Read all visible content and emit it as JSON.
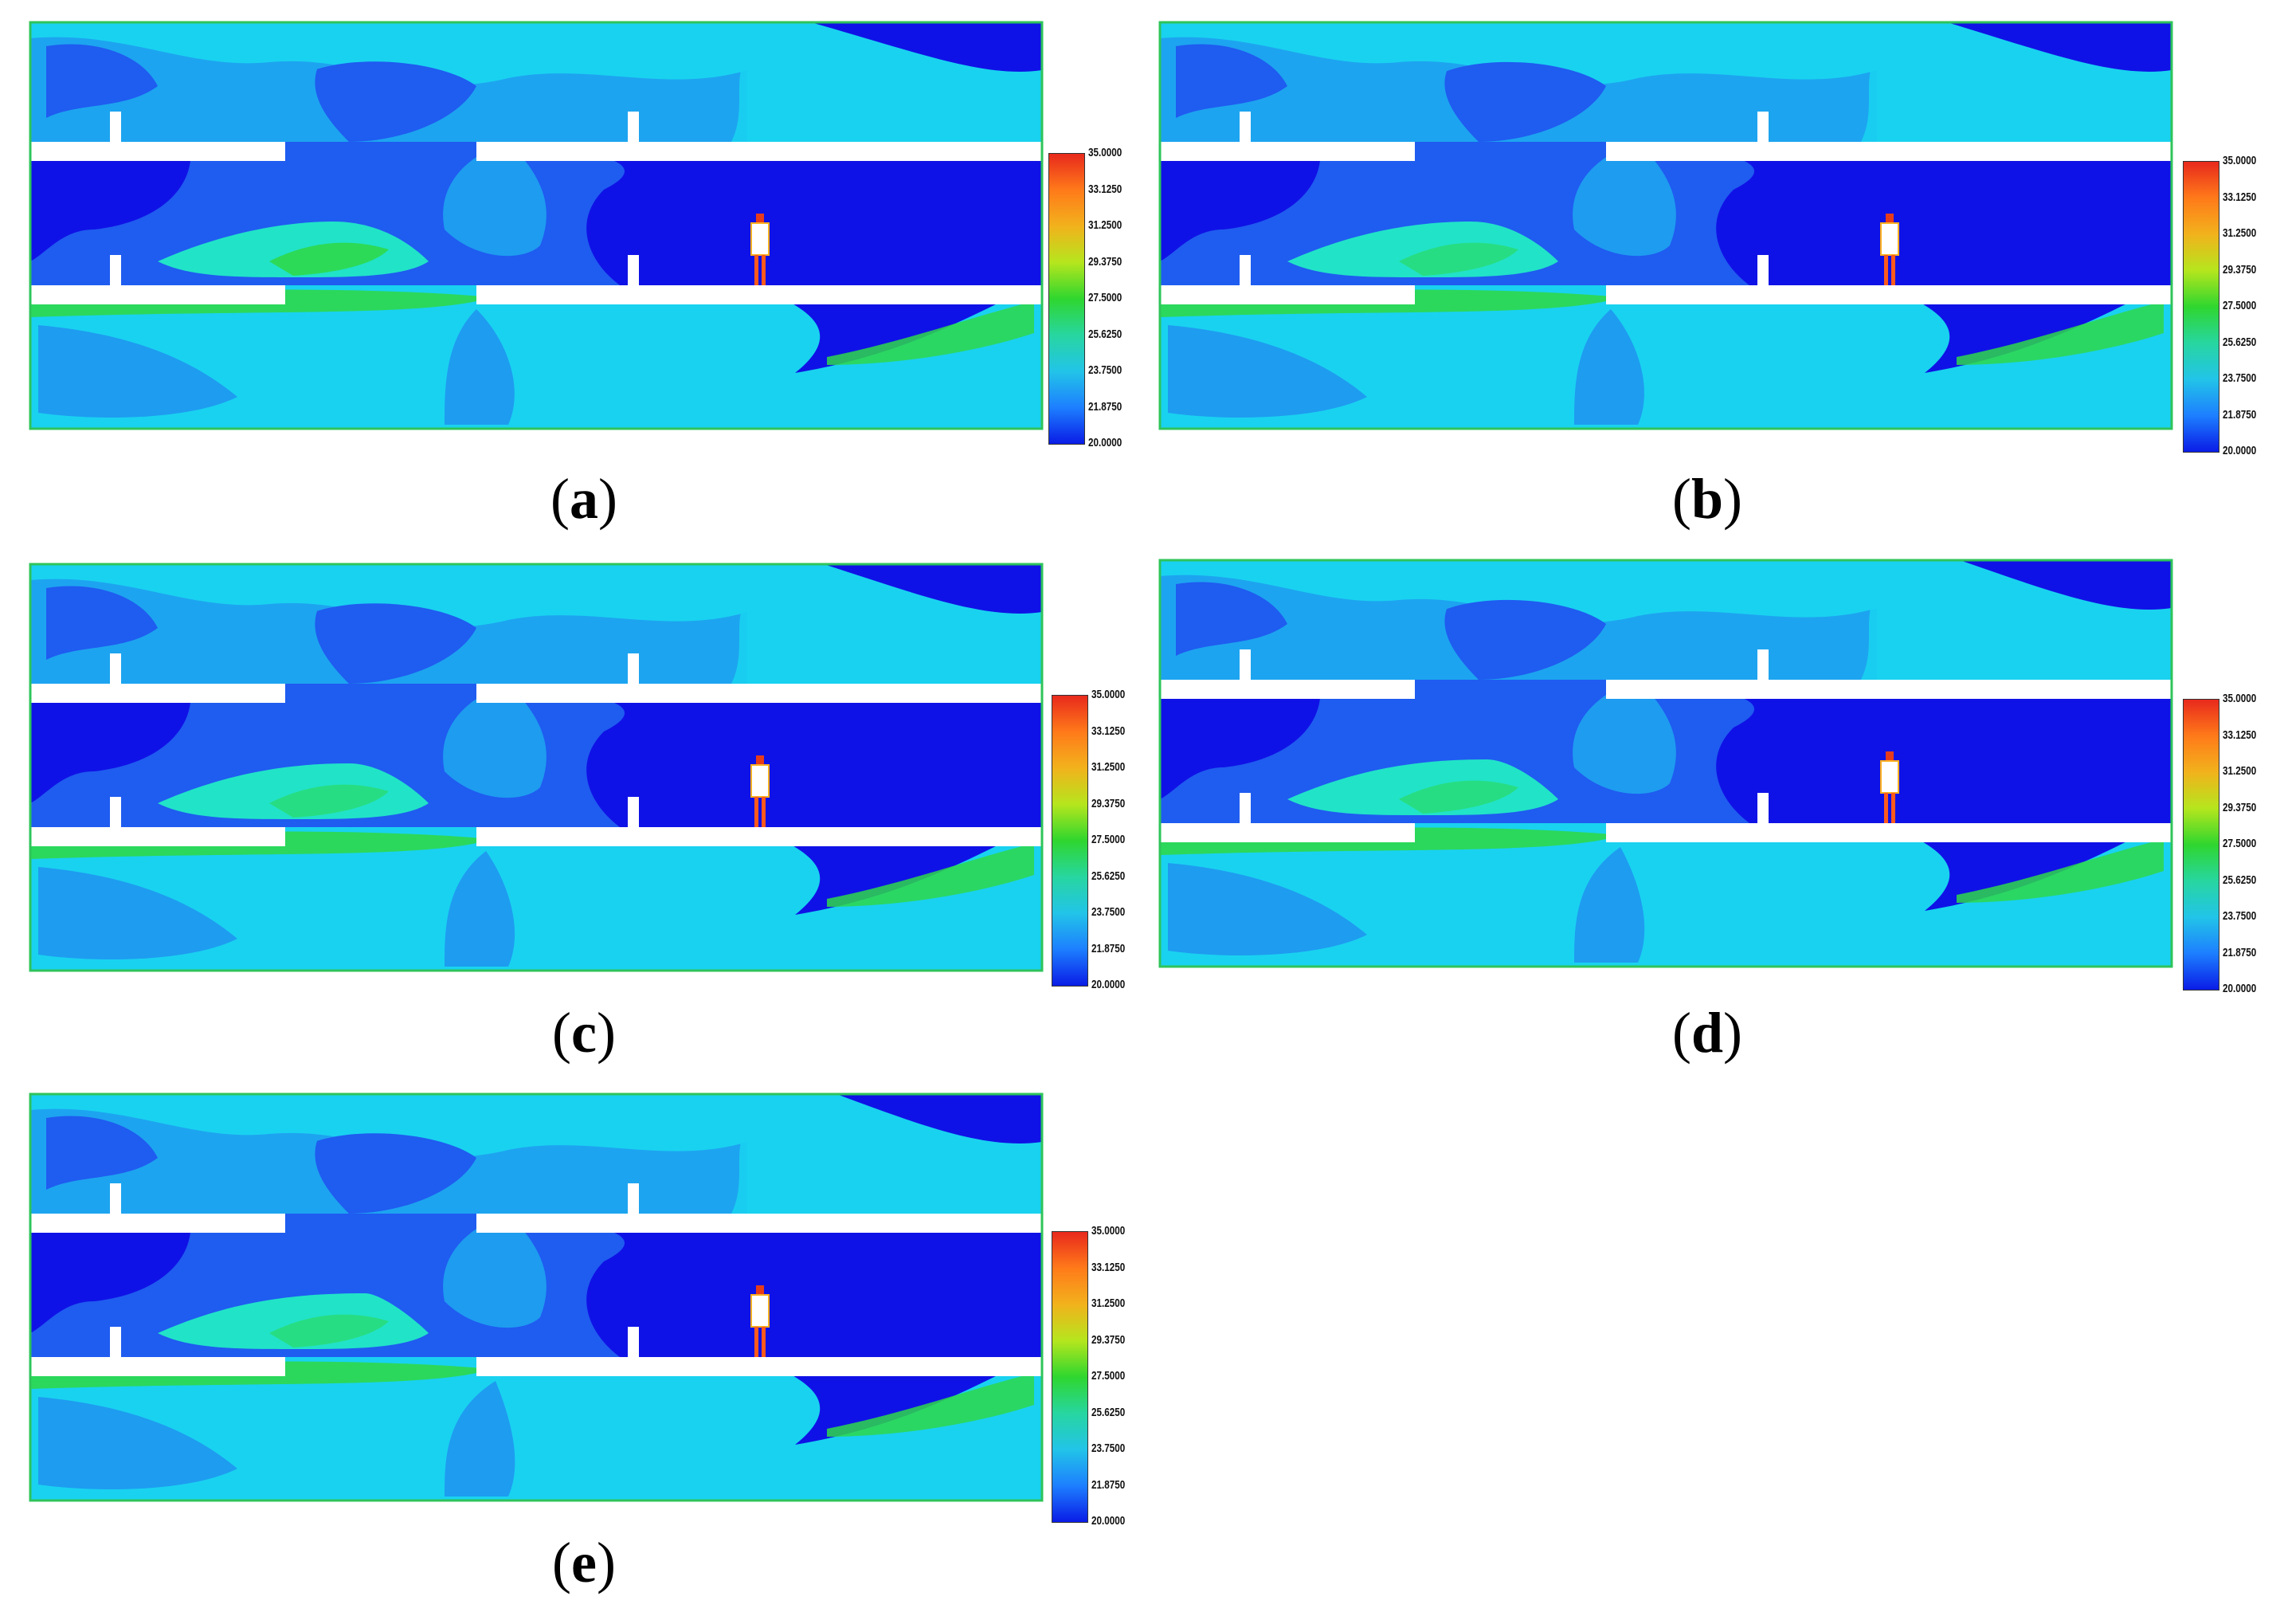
{
  "colorbar": {
    "ticks": [
      "35.0000",
      "33.1250",
      "31.2500",
      "29.3750",
      "27.5000",
      "25.6250",
      "23.7500",
      "21.8750",
      "20.0000"
    ],
    "scale_colors": [
      "#e8291c",
      "#ff7a1a",
      "#f2b21c",
      "#b5e61d",
      "#2fd62f",
      "#27d6a0",
      "#22c4e8",
      "#1d7fff",
      "#0a1ce6"
    ]
  },
  "colors": {
    "cold": "#0f12e6",
    "cool_blue": "#1f5cf0",
    "mid_blue": "#1e9cf0",
    "cyan": "#19d2f0",
    "aqua": "#21e3c8",
    "warm_green": "#2ed84a",
    "walls": "#ffffff",
    "frame": "#2ec45a"
  },
  "panels": [
    {
      "id": "a",
      "label": "a",
      "variant": 0
    },
    {
      "id": "b",
      "label": "b",
      "variant": 1
    },
    {
      "id": "c",
      "label": "c",
      "variant": 2
    },
    {
      "id": "d",
      "label": "d",
      "variant": 3
    },
    {
      "id": "e",
      "label": "e",
      "variant": 4
    }
  ],
  "figure": {
    "description_icons": [
      "person-icon"
    ]
  }
}
